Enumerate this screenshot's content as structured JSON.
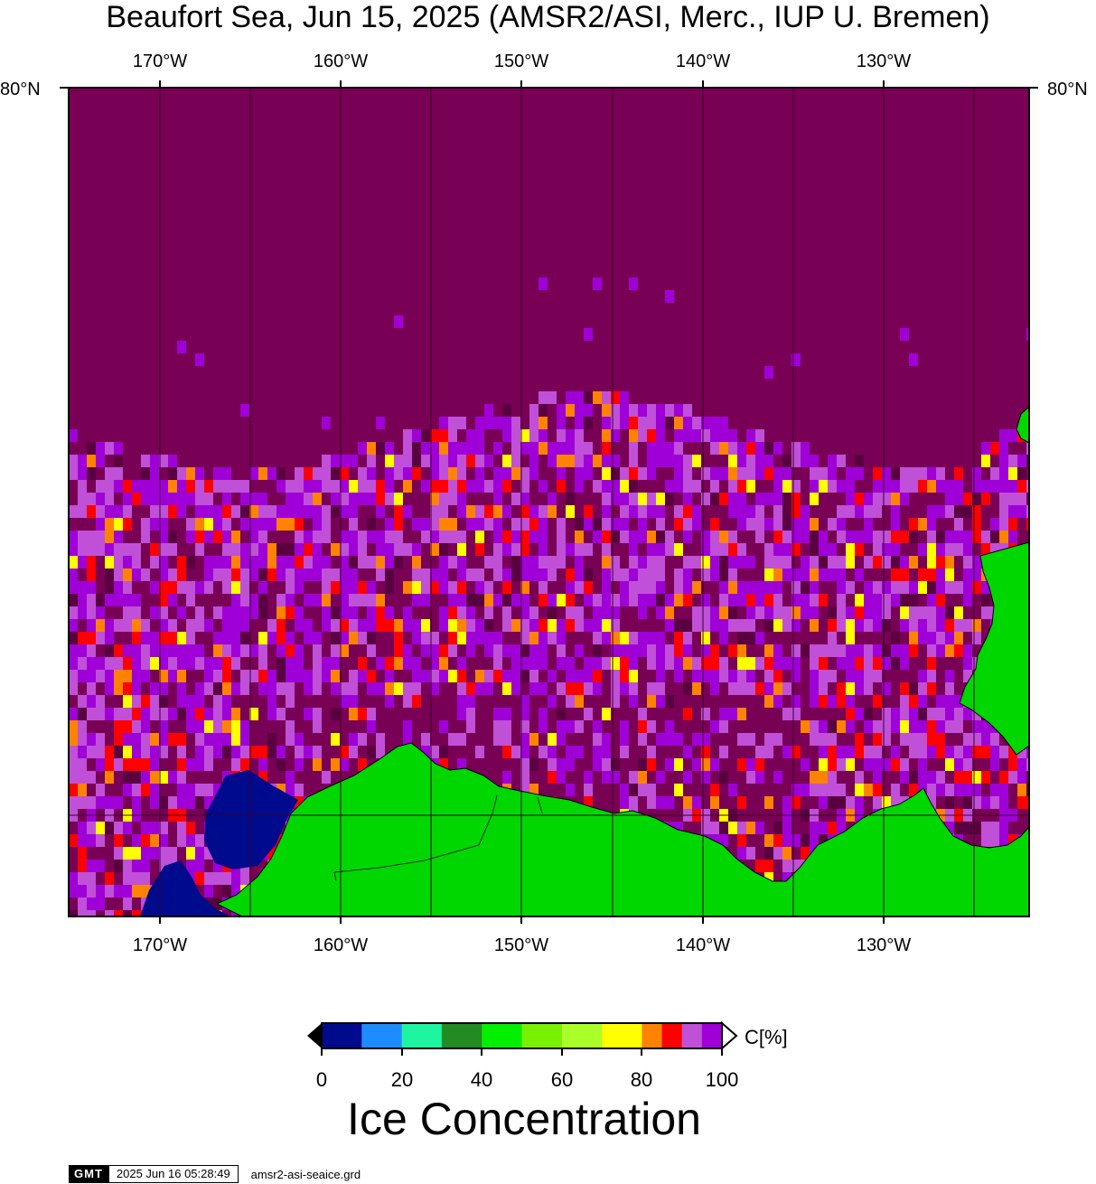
{
  "title": "Beaufort Sea, Jun 15, 2025 (AMSR2/ASI, Merc., IUP U. Bremen)",
  "map": {
    "lon_labels": [
      "170°W",
      "160°W",
      "150°W",
      "140°W",
      "130°W"
    ],
    "lat_label": "80°N",
    "colors": {
      "ocean_ice_full": "#780055",
      "land": "#00d700",
      "open_water": "#000a8c"
    }
  },
  "colorbar": {
    "ticks": [
      "0",
      "20",
      "40",
      "60",
      "80",
      "100"
    ],
    "unit": "C[%]",
    "title": "Ice Concentration",
    "colors": [
      "#000a8c",
      "#1e8cff",
      "#1ef5a0",
      "#228b22",
      "#00f000",
      "#78f000",
      "#aaff28",
      "#ffff00",
      "#ff8200",
      "#ff0000",
      "#c050d8",
      "#a000d8"
    ]
  },
  "footer": {
    "logo": "GMT",
    "timestamp": "2025 Jun 16 05:28:49",
    "file": "amsr2-asi-seaice.grd"
  }
}
